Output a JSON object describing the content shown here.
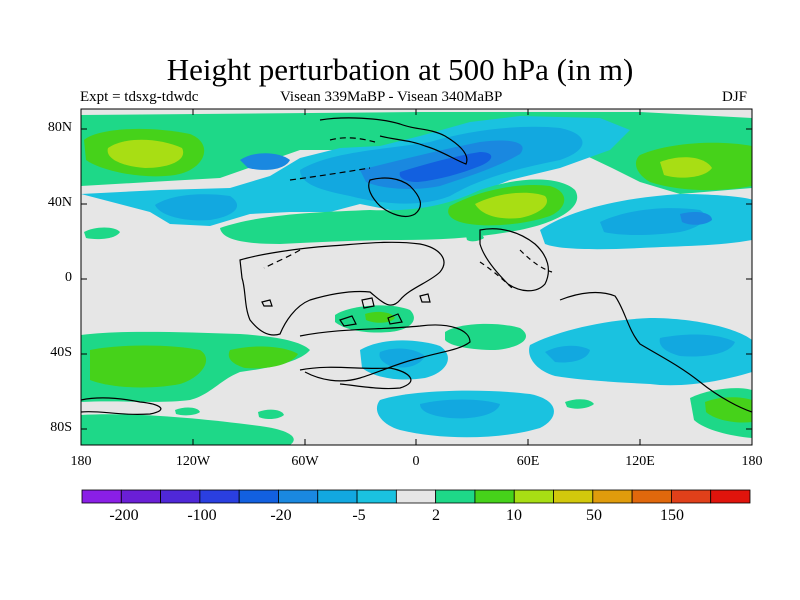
{
  "title": "Height perturbation at 500 hPa (in m)",
  "left_label": "Expt = tdsxg-tdwdc",
  "center_label": "Visean 339MaBP - Visean   340MaBP",
  "right_label": "DJF",
  "y_ticks": [
    "80N",
    "40N",
    "0",
    "40S",
    "80S"
  ],
  "x_ticks": [
    "180",
    "120W",
    "60W",
    "0",
    "60E",
    "120E",
    "180"
  ],
  "colorbar": {
    "colors": [
      "#8a1fe6",
      "#6a1fd6",
      "#4f28d8",
      "#2a3fe0",
      "#1260e0",
      "#1a88e0",
      "#12a8e0",
      "#1ac2e0",
      "#e6e6e6",
      "#1ed888",
      "#46d21a",
      "#a8de14",
      "#d2c80c",
      "#e09c0c",
      "#e0680c",
      "#e0401a",
      "#e0140c"
    ],
    "labels": [
      "-200",
      "-100",
      "-20",
      "-5",
      "2",
      "10",
      "50",
      "150"
    ]
  }
}
